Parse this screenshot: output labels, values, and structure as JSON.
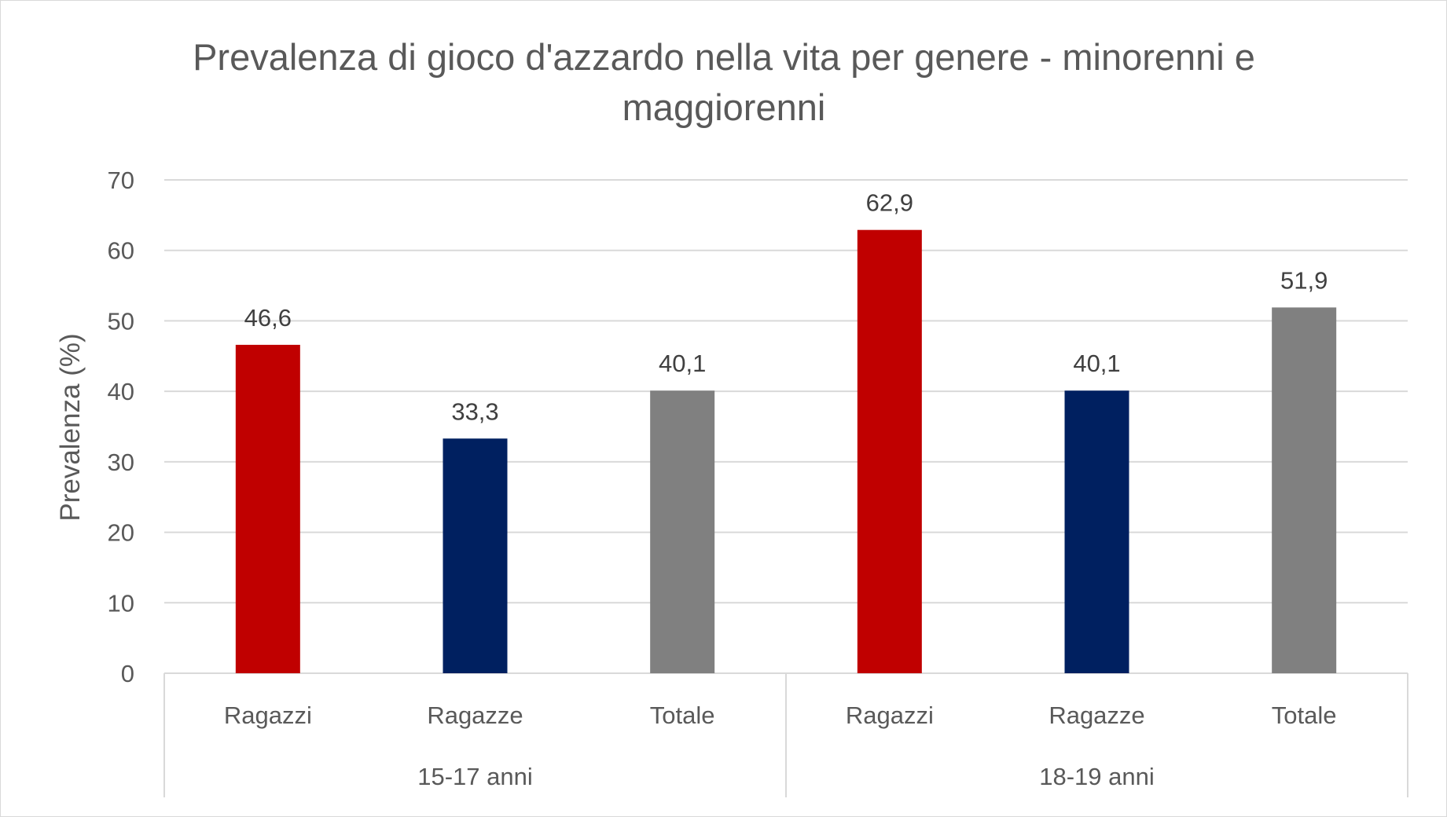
{
  "chart_data": {
    "type": "bar",
    "title": "Prevalenza di gioco d'azzardo nella vita per genere - minorenni e maggiorenni",
    "ylabel": "Prevalenza (%)",
    "xlabel": "",
    "ylim": [
      0,
      70
    ],
    "yticks": [
      "0",
      "10",
      "20",
      "30",
      "40",
      "50",
      "60",
      "70"
    ],
    "yticks_values": [
      0,
      10,
      20,
      30,
      40,
      50,
      60,
      70
    ],
    "grid": true,
    "legend": "none",
    "groups": [
      {
        "label": "15-17 anni",
        "bars": [
          {
            "category": "Ragazzi",
            "value": 46.6,
            "label": "46,6",
            "color": "#c00000"
          },
          {
            "category": "Ragazze",
            "value": 33.3,
            "label": "33,3",
            "color": "#002060"
          },
          {
            "category": "Totale",
            "value": 40.1,
            "label": "40,1",
            "color": "#808080"
          }
        ]
      },
      {
        "label": "18-19 anni",
        "bars": [
          {
            "category": "Ragazzi",
            "value": 62.9,
            "label": "62,9",
            "color": "#c00000"
          },
          {
            "category": "Ragazze",
            "value": 40.1,
            "label": "40,1",
            "color": "#002060"
          },
          {
            "category": "Totale",
            "value": 51.9,
            "label": "51,9",
            "color": "#808080"
          }
        ]
      }
    ]
  }
}
